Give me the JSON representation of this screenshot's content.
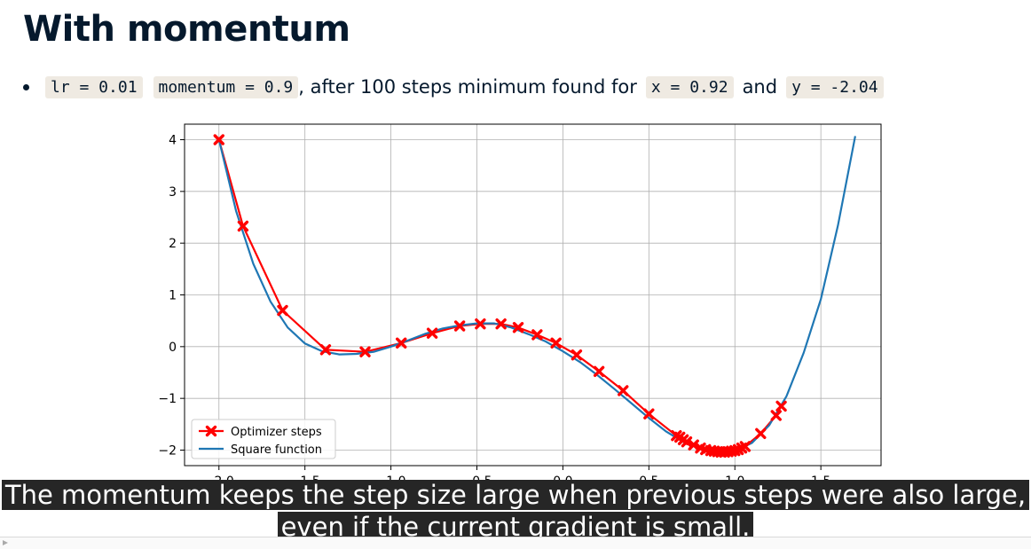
{
  "slide": {
    "title": "With momentum",
    "bullet": {
      "code_lr": "lr = 0.01",
      "code_momentum": "momentum = 0.9",
      "text_after": ", after 100 steps minimum found for",
      "code_x": "x = 0.92",
      "text_and": "and",
      "code_y": "y = -2.04"
    }
  },
  "caption": {
    "line1": "The momentum keeps the step size large when previous steps were also large,",
    "line2": "even if the current gradient is small."
  },
  "chart_data": {
    "type": "line",
    "xlim": [
      -2.2,
      1.85
    ],
    "ylim": [
      -2.3,
      4.3
    ],
    "xticks": [
      -2.0,
      -1.5,
      -1.0,
      -0.5,
      0.0,
      0.5,
      1.0,
      1.5
    ],
    "xtick_labels": [
      "−2.0",
      "−1.5",
      "−1.0",
      "−0.5",
      "0.0",
      "0.5",
      "1.0",
      "1.5"
    ],
    "yticks": [
      -2,
      -1,
      0,
      1,
      2,
      3,
      4
    ],
    "ytick_labels": [
      "−2",
      "−1",
      "0",
      "1",
      "2",
      "3",
      "4"
    ],
    "grid": true,
    "legend_position": "lower-left",
    "series": [
      {
        "name": "Optimizer steps",
        "color": "#ff0000",
        "marker": "X",
        "x": [
          -2.0,
          -1.86,
          -1.63,
          -1.38,
          -1.15,
          -0.94,
          -0.76,
          -0.6,
          -0.48,
          -0.36,
          -0.26,
          -0.15,
          -0.04,
          0.08,
          0.21,
          0.35,
          0.5,
          0.66,
          0.68,
          0.7,
          0.72,
          0.76,
          0.8,
          0.83,
          0.86,
          0.88,
          0.9,
          0.92,
          0.94,
          0.96,
          0.98,
          1.0,
          1.02,
          1.04,
          1.06,
          1.15,
          1.24,
          1.27
        ],
        "y": [
          4.0,
          2.33,
          0.7,
          -0.06,
          -0.1,
          0.07,
          0.26,
          0.4,
          0.44,
          0.44,
          0.37,
          0.23,
          0.07,
          -0.16,
          -0.48,
          -0.85,
          -1.3,
          -1.72,
          -1.75,
          -1.8,
          -1.84,
          -1.9,
          -1.96,
          -1.99,
          -2.01,
          -2.02,
          -2.03,
          -2.04,
          -2.04,
          -2.03,
          -2.02,
          -2.01,
          -1.99,
          -1.96,
          -1.93,
          -1.68,
          -1.33,
          -1.15
        ]
      },
      {
        "name": "Square function",
        "color": "#1f77b4",
        "marker": "none",
        "x": [
          -2.0,
          -1.9,
          -1.8,
          -1.7,
          -1.6,
          -1.5,
          -1.4,
          -1.3,
          -1.2,
          -1.1,
          -1.0,
          -0.9,
          -0.8,
          -0.7,
          -0.6,
          -0.5,
          -0.4,
          -0.3,
          -0.2,
          -0.1,
          0.0,
          0.1,
          0.2,
          0.3,
          0.4,
          0.5,
          0.6,
          0.7,
          0.8,
          0.9,
          1.0,
          1.1,
          1.2,
          1.3,
          1.4,
          1.5,
          1.6,
          1.7
        ],
        "y": [
          4.0,
          2.62,
          1.6,
          0.87,
          0.37,
          0.06,
          -0.09,
          -0.15,
          -0.14,
          -0.1,
          0.0,
          0.12,
          0.25,
          0.35,
          0.41,
          0.45,
          0.45,
          0.37,
          0.24,
          0.1,
          -0.09,
          -0.3,
          -0.55,
          -0.82,
          -1.1,
          -1.38,
          -1.64,
          -1.84,
          -1.97,
          -2.04,
          -2.02,
          -1.86,
          -1.52,
          -0.96,
          -0.12,
          0.92,
          2.35,
          4.07
        ]
      }
    ]
  }
}
